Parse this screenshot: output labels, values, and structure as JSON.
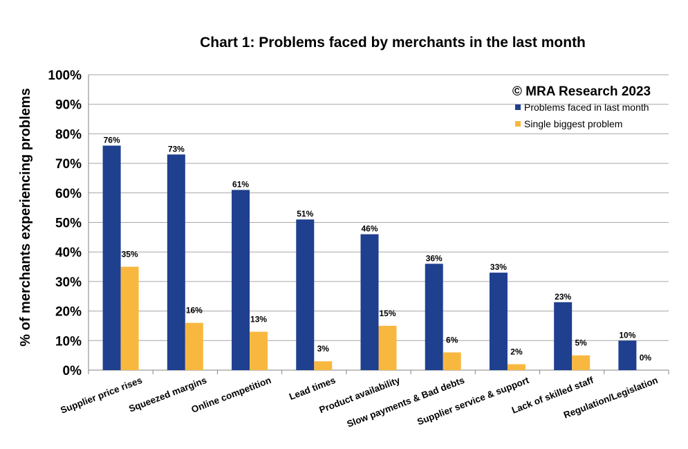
{
  "chart_data": {
    "type": "bar",
    "title": "Chart 1: Problems faced by merchants in the last month",
    "ylabel": "% of merchants experiencing problems",
    "xlabel": "",
    "ylim": [
      0,
      100
    ],
    "yticks": [
      "0%",
      "10%",
      "20%",
      "30%",
      "40%",
      "50%",
      "60%",
      "70%",
      "80%",
      "90%",
      "100%"
    ],
    "grid": true,
    "legend_position": "top-right",
    "annotation": "© MRA Research 2023",
    "categories": [
      "Supplier price rises",
      "Squeezed margins",
      "Online competition",
      "Lead times",
      "Product availability",
      "Slow payments & Bad debts",
      "Supplier service & support",
      "Lack of skilled staff",
      "Regulation/Legislation"
    ],
    "series": [
      {
        "name": "Problems faced in last month",
        "color": "#1f3f8f",
        "values": [
          76,
          73,
          61,
          51,
          46,
          36,
          33,
          23,
          10
        ],
        "labels": [
          "76%",
          "73%",
          "61%",
          "51%",
          "46%",
          "36%",
          "33%",
          "23%",
          "10%"
        ]
      },
      {
        "name": "Single biggest problem",
        "color": "#f8b840",
        "values": [
          35,
          16,
          13,
          3,
          15,
          6,
          2,
          5,
          0
        ],
        "labels": [
          "35%",
          "16%",
          "13%",
          "3%",
          "15%",
          "6%",
          "2%",
          "5%",
          "0%"
        ]
      }
    ]
  }
}
